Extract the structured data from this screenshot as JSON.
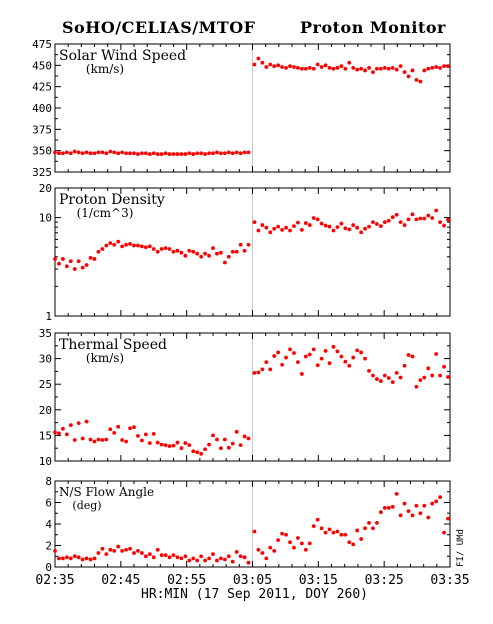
{
  "header": {
    "left_title": "SoHO/CELIAS/MTOF",
    "right_title": "Proton Monitor"
  },
  "side_label": "FI/ UMd",
  "xaxis": {
    "label": "HR:MIN (17 Sep 2011, DOY 260)",
    "ticks": [
      "02:35",
      "02:45",
      "02:55",
      "03:05",
      "03:15",
      "03:25",
      "03:35"
    ],
    "tick_minutes": [
      0,
      10,
      20,
      30,
      40,
      50,
      60
    ],
    "range_minutes": [
      0,
      60
    ]
  },
  "colors": {
    "points": "#ff0000",
    "axes": "#000000",
    "divider": "#c8c8c8"
  },
  "chart_data": [
    {
      "type": "scatter",
      "title": "Solar Wind Speed",
      "units": "(km/s)",
      "ylim": [
        325,
        475
      ],
      "scale": "linear",
      "yticks": [
        325,
        350,
        375,
        400,
        425,
        450,
        475
      ],
      "x": [
        0.0,
        0.6,
        1.2,
        1.8,
        2.4,
        3.0,
        3.6,
        4.2,
        4.8,
        5.4,
        6.0,
        6.6,
        7.2,
        7.8,
        8.4,
        9.0,
        9.6,
        10.2,
        10.8,
        11.4,
        12.0,
        12.6,
        13.2,
        13.8,
        14.4,
        15.0,
        15.6,
        16.2,
        16.8,
        17.4,
        18.0,
        18.6,
        19.2,
        19.8,
        20.4,
        21.0,
        21.6,
        22.2,
        22.8,
        23.4,
        24.0,
        24.6,
        25.2,
        25.8,
        26.4,
        27.0,
        27.6,
        28.2,
        28.8,
        29.4,
        30.3,
        30.9,
        31.5,
        32.1,
        32.7,
        33.3,
        33.9,
        34.5,
        35.1,
        35.7,
        36.3,
        36.9,
        37.5,
        38.1,
        38.7,
        39.3,
        39.9,
        40.5,
        41.1,
        41.7,
        42.3,
        42.9,
        43.5,
        44.1,
        44.7,
        45.3,
        45.9,
        46.5,
        47.1,
        47.7,
        48.3,
        48.9,
        49.5,
        50.1,
        50.7,
        51.3,
        51.9,
        52.5,
        53.1,
        53.7,
        54.3,
        54.9,
        55.5,
        56.1,
        56.7,
        57.3,
        57.9,
        58.5,
        59.1,
        59.7
      ],
      "y": [
        348,
        347,
        347,
        348,
        347,
        349,
        348,
        347,
        348,
        347,
        347,
        348,
        348,
        347,
        349,
        348,
        347,
        348,
        347,
        347,
        347,
        346,
        347,
        347,
        346,
        347,
        346,
        346,
        347,
        346,
        346,
        346,
        346,
        346,
        347,
        346,
        347,
        347,
        346,
        347,
        347,
        348,
        347,
        347,
        348,
        347,
        348,
        347,
        348,
        348,
        451,
        458,
        453,
        448,
        451,
        449,
        450,
        448,
        447,
        449,
        448,
        447,
        446,
        446,
        447,
        446,
        451,
        448,
        450,
        447,
        446,
        447,
        449,
        446,
        453,
        447,
        445,
        446,
        444,
        447,
        442,
        446,
        446,
        447,
        446,
        447,
        445,
        449,
        442,
        437,
        444,
        433,
        431,
        444,
        446,
        447,
        448,
        447,
        449,
        449
      ]
    },
    {
      "type": "scatter",
      "title": "Proton Density",
      "units": "(1/cm^3)",
      "ylim": [
        1,
        20
      ],
      "scale": "log",
      "yticks": [
        1,
        10,
        20
      ],
      "x": [
        0.0,
        0.6,
        1.2,
        1.8,
        2.4,
        3.0,
        3.6,
        4.2,
        4.8,
        5.4,
        6.0,
        6.6,
        7.2,
        7.8,
        8.4,
        9.0,
        9.6,
        10.2,
        10.8,
        11.4,
        12.0,
        12.6,
        13.2,
        13.8,
        14.4,
        15.0,
        15.6,
        16.2,
        16.8,
        17.4,
        18.0,
        18.6,
        19.2,
        19.8,
        20.4,
        21.0,
        21.6,
        22.2,
        22.8,
        23.4,
        24.0,
        24.6,
        25.2,
        25.8,
        26.4,
        27.0,
        27.6,
        28.2,
        28.8,
        29.4,
        30.3,
        30.9,
        31.5,
        32.1,
        32.7,
        33.3,
        33.9,
        34.5,
        35.1,
        35.7,
        36.3,
        36.9,
        37.5,
        38.1,
        38.7,
        39.3,
        39.9,
        40.5,
        41.1,
        41.7,
        42.3,
        42.9,
        43.5,
        44.1,
        44.7,
        45.3,
        45.9,
        46.5,
        47.1,
        47.7,
        48.3,
        48.9,
        49.5,
        50.1,
        50.7,
        51.3,
        51.9,
        52.5,
        53.1,
        53.7,
        54.3,
        54.9,
        55.5,
        56.1,
        56.7,
        57.3,
        57.9,
        58.5,
        59.1,
        59.7
      ],
      "y": [
        3.8,
        3.4,
        3.8,
        3.2,
        3.6,
        3.0,
        3.6,
        3.1,
        3.3,
        3.9,
        3.8,
        4.5,
        4.8,
        5.2,
        5.5,
        5.3,
        5.7,
        5.1,
        5.3,
        5.4,
        5.2,
        5.2,
        5.1,
        5.0,
        5.1,
        4.8,
        4.5,
        4.8,
        4.9,
        4.8,
        4.5,
        4.6,
        4.4,
        4.1,
        4.6,
        4.5,
        4.3,
        4.0,
        4.3,
        4.1,
        4.9,
        4.3,
        4.4,
        3.5,
        4.0,
        4.5,
        4.5,
        5.3,
        4.6,
        5.3,
        9.0,
        7.4,
        8.4,
        7.9,
        7.1,
        7.7,
        8.1,
        7.5,
        7.9,
        7.4,
        8.2,
        8.9,
        7.5,
        8.8,
        8.4,
        9.9,
        9.6,
        8.7,
        8.3,
        8.1,
        7.4,
        8.0,
        8.7,
        7.8,
        7.6,
        8.4,
        7.9,
        7.1,
        7.7,
        8.1,
        9.0,
        8.6,
        8.2,
        9.0,
        9.3,
        10.1,
        10.7,
        9.0,
        8.4,
        9.6,
        10.8,
        9.6,
        9.8,
        9.8,
        10.5,
        9.9,
        11.8,
        9.0,
        8.3,
        9.5
      ]
    },
    {
      "type": "scatter",
      "title": "Thermal Speed",
      "units": "(km/s)",
      "ylim": [
        10,
        35
      ],
      "scale": "linear",
      "yticks": [
        10,
        15,
        20,
        25,
        30,
        35
      ],
      "x": [
        0.0,
        0.6,
        1.2,
        1.8,
        2.4,
        3.0,
        3.6,
        4.2,
        4.8,
        5.4,
        6.0,
        6.6,
        7.2,
        7.8,
        8.4,
        9.0,
        9.6,
        10.2,
        10.8,
        11.4,
        12.0,
        12.6,
        13.2,
        13.8,
        14.4,
        15.0,
        15.6,
        16.2,
        16.8,
        17.4,
        18.0,
        18.6,
        19.2,
        19.8,
        20.4,
        21.0,
        21.6,
        22.2,
        22.8,
        23.4,
        24.0,
        24.6,
        25.2,
        25.8,
        26.4,
        27.0,
        27.6,
        28.2,
        28.8,
        29.4,
        30.3,
        30.9,
        31.5,
        32.1,
        32.7,
        33.3,
        33.9,
        34.5,
        35.1,
        35.7,
        36.3,
        36.9,
        37.5,
        38.1,
        38.7,
        39.3,
        39.9,
        40.5,
        41.1,
        41.7,
        42.3,
        42.9,
        43.5,
        44.1,
        44.7,
        45.3,
        45.9,
        46.5,
        47.1,
        47.7,
        48.3,
        48.9,
        49.5,
        50.1,
        50.7,
        51.3,
        51.9,
        52.5,
        53.1,
        53.7,
        54.3,
        54.9,
        55.5,
        56.1,
        56.7,
        57.3,
        57.9,
        58.5,
        59.1,
        59.7
      ],
      "y": [
        15.6,
        15.4,
        16.3,
        15.2,
        17.0,
        14.1,
        17.4,
        14.4,
        17.7,
        14.2,
        13.8,
        14.2,
        14.1,
        14.2,
        16.2,
        15.5,
        16.7,
        14.1,
        13.8,
        16.4,
        16.6,
        14.9,
        14.0,
        15.2,
        13.5,
        15.3,
        13.6,
        13.2,
        13.1,
        12.9,
        13.0,
        13.6,
        12.5,
        13.5,
        13.1,
        11.9,
        11.7,
        11.4,
        12.3,
        13.2,
        15.0,
        14.2,
        12.5,
        14.2,
        12.6,
        13.4,
        15.7,
        13.1,
        14.8,
        14.4,
        27.2,
        27.3,
        27.9,
        29.3,
        27.9,
        30.5,
        31.2,
        28.8,
        30.2,
        31.8,
        31.1,
        29.3,
        27.0,
        30.4,
        30.8,
        31.8,
        28.7,
        30.0,
        31.5,
        29.1,
        32.3,
        31.4,
        30.4,
        29.4,
        28.6,
        30.2,
        31.6,
        31.2,
        30.0,
        27.6,
        26.7,
        26.0,
        25.6,
        26.7,
        26.2,
        25.4,
        27.2,
        26.3,
        28.6,
        30.7,
        30.4,
        24.5,
        25.8,
        26.3,
        28.1,
        26.7,
        30.9,
        26.7,
        28.4,
        26.4
      ]
    },
    {
      "type": "scatter",
      "title": "N/S Flow Angle",
      "units": "(deg)",
      "ylim": [
        0,
        8
      ],
      "scale": "linear",
      "yticks": [
        0,
        2,
        4,
        6,
        8
      ],
      "x": [
        0.0,
        0.6,
        1.2,
        1.8,
        2.4,
        3.0,
        3.6,
        4.2,
        4.8,
        5.4,
        6.0,
        6.6,
        7.2,
        7.8,
        8.4,
        9.0,
        9.6,
        10.2,
        10.8,
        11.4,
        12.0,
        12.6,
        13.2,
        13.8,
        14.4,
        15.0,
        15.6,
        16.2,
        16.8,
        17.4,
        18.0,
        18.6,
        19.2,
        19.8,
        20.4,
        21.0,
        21.6,
        22.2,
        22.8,
        23.4,
        24.0,
        24.6,
        25.2,
        25.8,
        26.4,
        27.0,
        27.6,
        28.2,
        28.8,
        29.4,
        30.3,
        30.9,
        31.5,
        32.1,
        32.7,
        33.3,
        33.9,
        34.5,
        35.1,
        35.7,
        36.3,
        36.9,
        37.5,
        38.1,
        38.7,
        39.3,
        39.9,
        40.5,
        41.1,
        41.7,
        42.3,
        42.9,
        43.5,
        44.1,
        44.7,
        45.3,
        45.9,
        46.5,
        47.1,
        47.7,
        48.3,
        48.9,
        49.5,
        50.1,
        50.7,
        51.3,
        51.9,
        52.5,
        53.1,
        53.7,
        54.3,
        54.9,
        55.5,
        56.1,
        56.7,
        57.3,
        57.9,
        58.5,
        59.1,
        59.7
      ],
      "y": [
        1.5,
        0.8,
        0.8,
        0.9,
        0.8,
        1.0,
        0.9,
        0.7,
        0.8,
        0.7,
        0.8,
        1.3,
        1.7,
        1.2,
        1.6,
        1.5,
        1.9,
        1.5,
        1.6,
        1.7,
        1.3,
        1.5,
        1.3,
        1.0,
        1.2,
        0.9,
        1.6,
        1.1,
        1.1,
        0.9,
        1.1,
        0.9,
        0.8,
        1.0,
        0.6,
        0.8,
        0.6,
        1.0,
        0.6,
        0.8,
        1.2,
        0.6,
        0.8,
        0.7,
        1.0,
        0.5,
        1.4,
        1.0,
        0.9,
        0.4,
        3.3,
        1.6,
        1.3,
        0.8,
        1.8,
        1.5,
        2.5,
        3.1,
        3.0,
        2.3,
        1.8,
        2.7,
        2.2,
        1.6,
        2.2,
        3.8,
        4.4,
        3.6,
        3.2,
        3.5,
        3.2,
        3.3,
        3.0,
        3.0,
        2.3,
        2.1,
        3.4,
        2.6,
        3.6,
        4.1,
        3.6,
        4.1,
        5.1,
        5.5,
        5.5,
        5.6,
        6.8,
        4.8,
        5.9,
        5.2,
        4.8,
        5.7,
        5.0,
        5.7,
        4.6,
        5.9,
        6.1,
        6.5,
        3.2,
        4.5
      ]
    }
  ]
}
